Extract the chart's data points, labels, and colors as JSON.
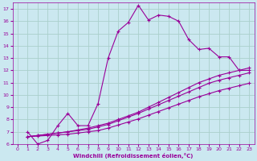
{
  "xlabel": "Windchill (Refroidissement éolien,°C)",
  "bg_color": "#cbe8f0",
  "grid_color": "#aacfcc",
  "line_color": "#990099",
  "xlim": [
    -0.5,
    23.5
  ],
  "ylim": [
    6,
    17.5
  ],
  "xticks": [
    0,
    1,
    2,
    3,
    4,
    5,
    6,
    7,
    8,
    9,
    10,
    11,
    12,
    13,
    14,
    15,
    16,
    17,
    18,
    19,
    20,
    21,
    22,
    23
  ],
  "yticks": [
    6,
    7,
    8,
    9,
    10,
    11,
    12,
    13,
    14,
    15,
    16,
    17
  ],
  "line1_x": [
    1,
    2,
    3,
    4,
    5,
    6,
    7,
    8,
    9,
    10,
    11,
    12,
    13,
    14,
    15,
    16,
    17,
    18,
    19,
    20,
    21,
    22,
    23
  ],
  "line1_y": [
    7.0,
    6.0,
    6.3,
    7.5,
    8.5,
    7.5,
    7.5,
    9.3,
    13.0,
    15.2,
    15.9,
    17.3,
    16.1,
    16.5,
    16.4,
    16.0,
    14.5,
    13.7,
    13.8,
    13.1,
    13.1,
    12.0,
    12.0
  ],
  "line2_x": [
    1,
    2,
    3,
    4,
    5,
    6,
    7,
    8,
    9,
    10,
    11,
    12,
    13,
    14,
    15,
    16,
    17,
    18,
    19,
    20,
    21,
    22,
    23
  ],
  "line2_y": [
    6.6,
    6.7,
    6.8,
    6.9,
    7.0,
    7.15,
    7.3,
    7.5,
    7.7,
    8.0,
    8.3,
    8.6,
    9.0,
    9.4,
    9.8,
    10.2,
    10.6,
    11.0,
    11.3,
    11.6,
    11.8,
    12.0,
    12.2
  ],
  "line3_x": [
    1,
    2,
    3,
    4,
    5,
    6,
    7,
    8,
    9,
    10,
    11,
    12,
    13,
    14,
    15,
    16,
    17,
    18,
    19,
    20,
    21,
    22,
    23
  ],
  "line3_y": [
    6.6,
    6.7,
    6.8,
    6.9,
    7.0,
    7.1,
    7.2,
    7.4,
    7.6,
    7.9,
    8.2,
    8.5,
    8.85,
    9.2,
    9.55,
    9.9,
    10.25,
    10.6,
    10.95,
    11.2,
    11.4,
    11.6,
    11.8
  ],
  "line4_x": [
    1,
    2,
    3,
    4,
    5,
    6,
    7,
    8,
    9,
    10,
    11,
    12,
    13,
    14,
    15,
    16,
    17,
    18,
    19,
    20,
    21,
    22,
    23
  ],
  "line4_y": [
    6.6,
    6.65,
    6.7,
    6.75,
    6.8,
    6.9,
    7.0,
    7.1,
    7.3,
    7.55,
    7.8,
    8.05,
    8.35,
    8.65,
    8.95,
    9.25,
    9.55,
    9.85,
    10.1,
    10.35,
    10.55,
    10.75,
    10.95
  ]
}
